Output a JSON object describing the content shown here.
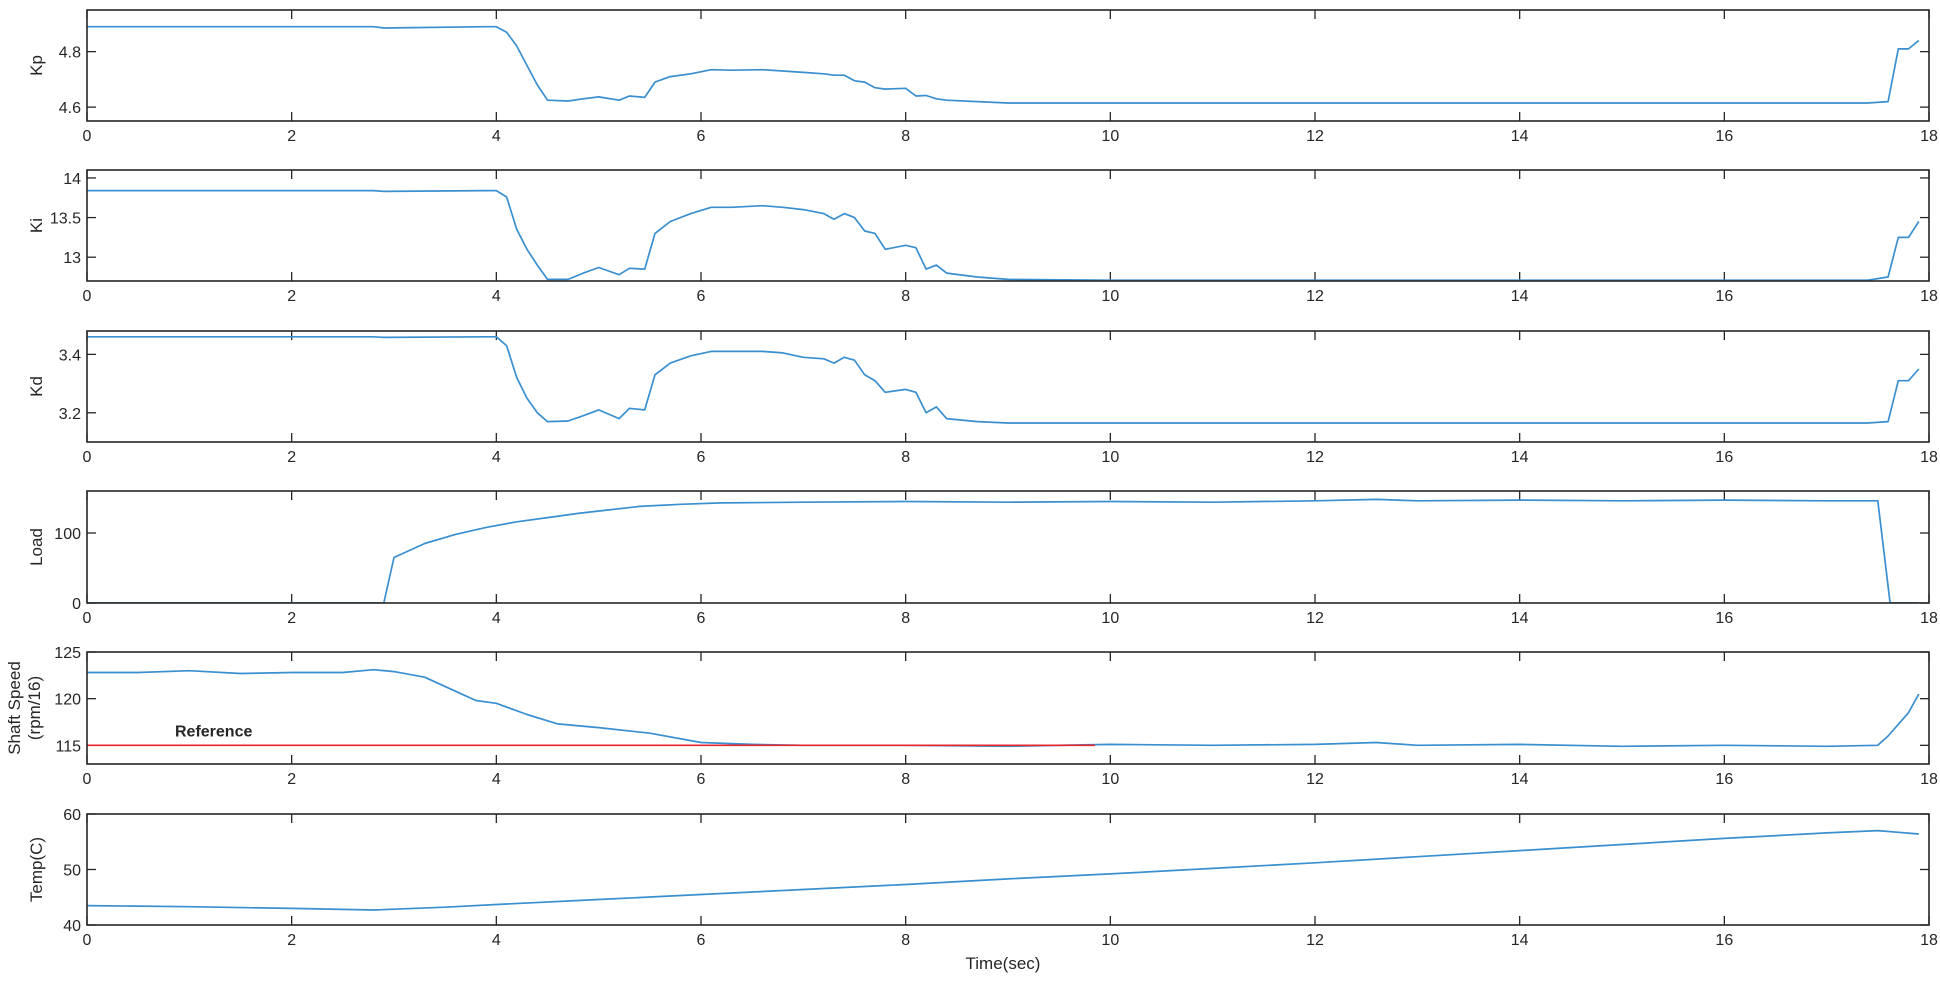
{
  "chart_data": [
    {
      "type": "line",
      "ylabel": "Kp",
      "xlim": [
        0,
        18
      ],
      "ylim": [
        4.55,
        4.95
      ],
      "xticks": [
        0,
        2,
        4,
        6,
        8,
        10,
        12,
        14,
        16,
        18
      ],
      "yticks": [
        4.6,
        4.8
      ],
      "ytick_labels": [
        "4.6",
        "4.8"
      ],
      "series": [
        {
          "color": "#3a8fd0",
          "x": [
            0,
            2.8,
            2.9,
            3.9,
            4.0,
            4.1,
            4.2,
            4.3,
            4.4,
            4.5,
            4.7,
            4.85,
            5.0,
            5.2,
            5.3,
            5.45,
            5.55,
            5.7,
            5.9,
            6.1,
            6.3,
            6.6,
            6.8,
            7.0,
            7.2,
            7.3,
            7.4,
            7.5,
            7.6,
            7.7,
            7.8,
            8.0,
            8.1,
            8.2,
            8.3,
            8.4,
            8.7,
            9.0,
            10,
            12,
            14,
            16,
            17.4,
            17.6,
            17.7,
            17.8,
            17.9
          ],
          "y": [
            4.89,
            4.89,
            4.885,
            4.89,
            4.89,
            4.87,
            4.82,
            4.75,
            4.68,
            4.625,
            4.622,
            4.63,
            4.637,
            4.625,
            4.64,
            4.635,
            4.69,
            4.71,
            4.72,
            4.735,
            4.733,
            4.735,
            4.73,
            4.725,
            4.72,
            4.715,
            4.715,
            4.695,
            4.69,
            4.67,
            4.665,
            4.668,
            4.64,
            4.642,
            4.63,
            4.625,
            4.62,
            4.615,
            4.615,
            4.615,
            4.615,
            4.615,
            4.615,
            4.62,
            4.81,
            4.81,
            4.84
          ]
        }
      ]
    },
    {
      "type": "line",
      "ylabel": "Ki",
      "xlim": [
        0,
        18
      ],
      "ylim": [
        12.7,
        14.1
      ],
      "xticks": [
        0,
        2,
        4,
        6,
        8,
        10,
        12,
        14,
        16,
        18
      ],
      "yticks": [
        13.0,
        13.5,
        14.0
      ],
      "ytick_labels": [
        "13",
        "13.5",
        "14"
      ],
      "series": [
        {
          "color": "#3a8fd0",
          "x": [
            0,
            2.8,
            2.9,
            3.9,
            4.0,
            4.1,
            4.2,
            4.3,
            4.4,
            4.5,
            4.7,
            4.85,
            5.0,
            5.2,
            5.3,
            5.45,
            5.55,
            5.7,
            5.9,
            6.1,
            6.3,
            6.6,
            6.8,
            7.0,
            7.2,
            7.3,
            7.4,
            7.5,
            7.6,
            7.7,
            7.8,
            8.0,
            8.1,
            8.2,
            8.3,
            8.4,
            8.7,
            9.0,
            10,
            12,
            14,
            16,
            17.4,
            17.6,
            17.7,
            17.8,
            17.9
          ],
          "y": [
            13.84,
            13.84,
            13.83,
            13.84,
            13.84,
            13.76,
            13.35,
            13.1,
            12.9,
            12.72,
            12.72,
            12.8,
            12.87,
            12.78,
            12.86,
            12.85,
            13.3,
            13.45,
            13.55,
            13.63,
            13.63,
            13.65,
            13.63,
            13.6,
            13.55,
            13.48,
            13.55,
            13.5,
            13.33,
            13.3,
            13.1,
            13.15,
            13.12,
            12.85,
            12.9,
            12.8,
            12.75,
            12.72,
            12.71,
            12.71,
            12.71,
            12.71,
            12.71,
            12.75,
            13.25,
            13.25,
            13.45
          ]
        }
      ]
    },
    {
      "type": "line",
      "ylabel": "Kd",
      "xlim": [
        0,
        18
      ],
      "ylim": [
        3.1,
        3.48
      ],
      "xticks": [
        0,
        2,
        4,
        6,
        8,
        10,
        12,
        14,
        16,
        18
      ],
      "yticks": [
        3.2,
        3.4
      ],
      "ytick_labels": [
        "3.2",
        "3.4"
      ],
      "series": [
        {
          "color": "#3a8fd0",
          "x": [
            0,
            2.8,
            2.9,
            3.9,
            4.0,
            4.1,
            4.2,
            4.3,
            4.4,
            4.5,
            4.7,
            4.85,
            5.0,
            5.2,
            5.3,
            5.45,
            5.55,
            5.7,
            5.9,
            6.1,
            6.3,
            6.6,
            6.8,
            7.0,
            7.2,
            7.3,
            7.4,
            7.5,
            7.6,
            7.7,
            7.8,
            8.0,
            8.1,
            8.2,
            8.3,
            8.4,
            8.7,
            9.0,
            10,
            12,
            14,
            16,
            17.4,
            17.6,
            17.7,
            17.8,
            17.9
          ],
          "y": [
            3.46,
            3.46,
            3.458,
            3.46,
            3.46,
            3.43,
            3.32,
            3.25,
            3.2,
            3.17,
            3.172,
            3.19,
            3.21,
            3.18,
            3.215,
            3.21,
            3.33,
            3.37,
            3.395,
            3.41,
            3.41,
            3.41,
            3.405,
            3.39,
            3.385,
            3.37,
            3.39,
            3.38,
            3.33,
            3.31,
            3.27,
            3.28,
            3.27,
            3.2,
            3.22,
            3.18,
            3.17,
            3.165,
            3.165,
            3.165,
            3.165,
            3.165,
            3.165,
            3.17,
            3.31,
            3.31,
            3.35
          ]
        }
      ]
    },
    {
      "type": "line",
      "ylabel": "Load",
      "xlim": [
        0,
        18
      ],
      "ylim": [
        0,
        160
      ],
      "xticks": [
        0,
        2,
        4,
        6,
        8,
        10,
        12,
        14,
        16,
        18
      ],
      "yticks": [
        0,
        100
      ],
      "ytick_labels": [
        "0",
        "100"
      ],
      "series": [
        {
          "color": "#3a8fd0",
          "x": [
            0,
            2.9,
            3.0,
            3.3,
            3.6,
            3.9,
            4.2,
            4.5,
            4.8,
            5.1,
            5.4,
            5.8,
            6.2,
            7.0,
            8.0,
            9.0,
            10.0,
            11.0,
            12.0,
            12.6,
            13.0,
            14.0,
            15.0,
            16.0,
            17.0,
            17.5,
            17.62,
            17.8,
            17.9
          ],
          "y": [
            0,
            0,
            65,
            85,
            98,
            108,
            116,
            122,
            128,
            133,
            138,
            141,
            143,
            144,
            145,
            144,
            145,
            144,
            146,
            148,
            146,
            147,
            146,
            147,
            146,
            146,
            0,
            0,
            0
          ]
        }
      ]
    },
    {
      "type": "line",
      "ylabel": "Shaft Speed\n(rpm/16)",
      "xlim": [
        0,
        18
      ],
      "ylim": [
        113,
        125
      ],
      "xticks": [
        0,
        2,
        4,
        6,
        8,
        10,
        12,
        14,
        16,
        18
      ],
      "yticks": [
        115,
        120,
        125
      ],
      "ytick_labels": [
        "115",
        "120",
        "125"
      ],
      "annotation": "Reference",
      "series": [
        {
          "color": "#3a8fd0",
          "x": [
            0,
            0.5,
            1.0,
            1.5,
            2.0,
            2.5,
            2.8,
            3.0,
            3.3,
            3.6,
            3.8,
            4.0,
            4.3,
            4.6,
            5.0,
            5.5,
            6.0,
            6.5,
            7.0,
            8.0,
            9.0,
            10.0,
            11.0,
            12.0,
            12.6,
            13.0,
            14.0,
            15.0,
            16.0,
            17.0,
            17.5,
            17.6,
            17.8,
            17.9
          ],
          "y": [
            122.8,
            122.8,
            123.0,
            122.7,
            122.8,
            122.8,
            123.1,
            122.9,
            122.3,
            120.8,
            119.8,
            119.5,
            118.3,
            117.3,
            116.9,
            116.3,
            115.3,
            115.1,
            115.0,
            115.0,
            114.9,
            115.1,
            115.0,
            115.1,
            115.3,
            115.0,
            115.1,
            114.9,
            115.0,
            114.9,
            115.0,
            116.0,
            118.5,
            120.5
          ]
        },
        {
          "color": "#e8262b",
          "x": [
            0,
            9.85
          ],
          "y": [
            115,
            115
          ]
        }
      ]
    },
    {
      "type": "line",
      "ylabel": "Temp(C)",
      "xlabel": "Time(sec)",
      "xlim": [
        0,
        18
      ],
      "ylim": [
        40,
        60
      ],
      "xticks": [
        0,
        2,
        4,
        6,
        8,
        10,
        12,
        14,
        16,
        18
      ],
      "yticks": [
        40,
        50,
        60
      ],
      "ytick_labels": [
        "40",
        "50",
        "60"
      ],
      "series": [
        {
          "color": "#3a8fd0",
          "x": [
            0,
            1,
            2,
            2.8,
            3.5,
            4.0,
            5.0,
            6.0,
            7.0,
            8.0,
            9.0,
            10.0,
            11.0,
            12.0,
            13.0,
            14.0,
            15.0,
            16.0,
            17.0,
            17.5,
            17.9
          ],
          "y": [
            43.5,
            43.3,
            43.0,
            42.7,
            43.2,
            43.7,
            44.6,
            45.5,
            46.4,
            47.3,
            48.3,
            49.2,
            50.2,
            51.2,
            52.3,
            53.4,
            54.5,
            55.6,
            56.6,
            57.0,
            56.4
          ]
        }
      ]
    }
  ]
}
